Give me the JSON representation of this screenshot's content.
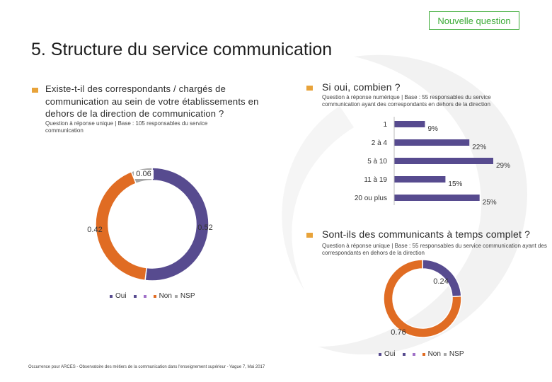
{
  "header": {
    "new_question": "Nouvelle question",
    "title": "5. Structure du service communication"
  },
  "left": {
    "question": "Existe-t-il des correspondants / chargés de communication au sein de votre établissements en dehors de la direction de communication ?",
    "note": "Question à réponse unique | Base : 105 responsables du service communication"
  },
  "top_right": {
    "question": "Si oui, combien ?",
    "note": "Question à réponse numérique | Base : 55 responsables du service communication ayant des correspondants en dehors de la direction"
  },
  "bottom_right": {
    "question": "Sont-ils des communicants à temps complet ?",
    "note": "Question à réponse unique | Base : 55 responsables du service communication ayant des correspondants en dehors de la direction"
  },
  "footer": "Occurrence pour ARCES - Observatoire des métiers de la communication dans l'enseignement supérieur - Vague 7, Mai 2017",
  "colors": {
    "oui": "#574b8f",
    "non": "#e06c23",
    "nsp": "#a6a6a6",
    "bar": "#574b8f",
    "accent": "#e8a33a",
    "green": "#3aaa35"
  },
  "chart_data": [
    {
      "type": "pie",
      "donut": true,
      "categories": [
        "Oui",
        "Non",
        "NSP"
      ],
      "values": [
        0.52,
        0.42,
        0.06
      ],
      "labels": [
        "0.52",
        "0.42",
        "0.06"
      ],
      "legend": [
        "Oui",
        "Non",
        "NSP"
      ],
      "legend_position": "bottom"
    },
    {
      "type": "bar",
      "orientation": "horizontal",
      "categories": [
        "1",
        "2 à 4",
        "5 à 10",
        "11 à 19",
        "20 ou plus"
      ],
      "values": [
        9,
        22,
        29,
        15,
        25
      ],
      "labels": [
        "9%",
        "22%",
        "29%",
        "15%",
        "25%"
      ],
      "unit": "%"
    },
    {
      "type": "pie",
      "donut": true,
      "categories": [
        "Oui",
        "Non",
        "NSP"
      ],
      "values": [
        0.24,
        0.76,
        0
      ],
      "labels": [
        "0.24",
        "0.76"
      ],
      "legend": [
        "Oui",
        "Non",
        "NSP"
      ],
      "legend_position": "bottom"
    }
  ]
}
